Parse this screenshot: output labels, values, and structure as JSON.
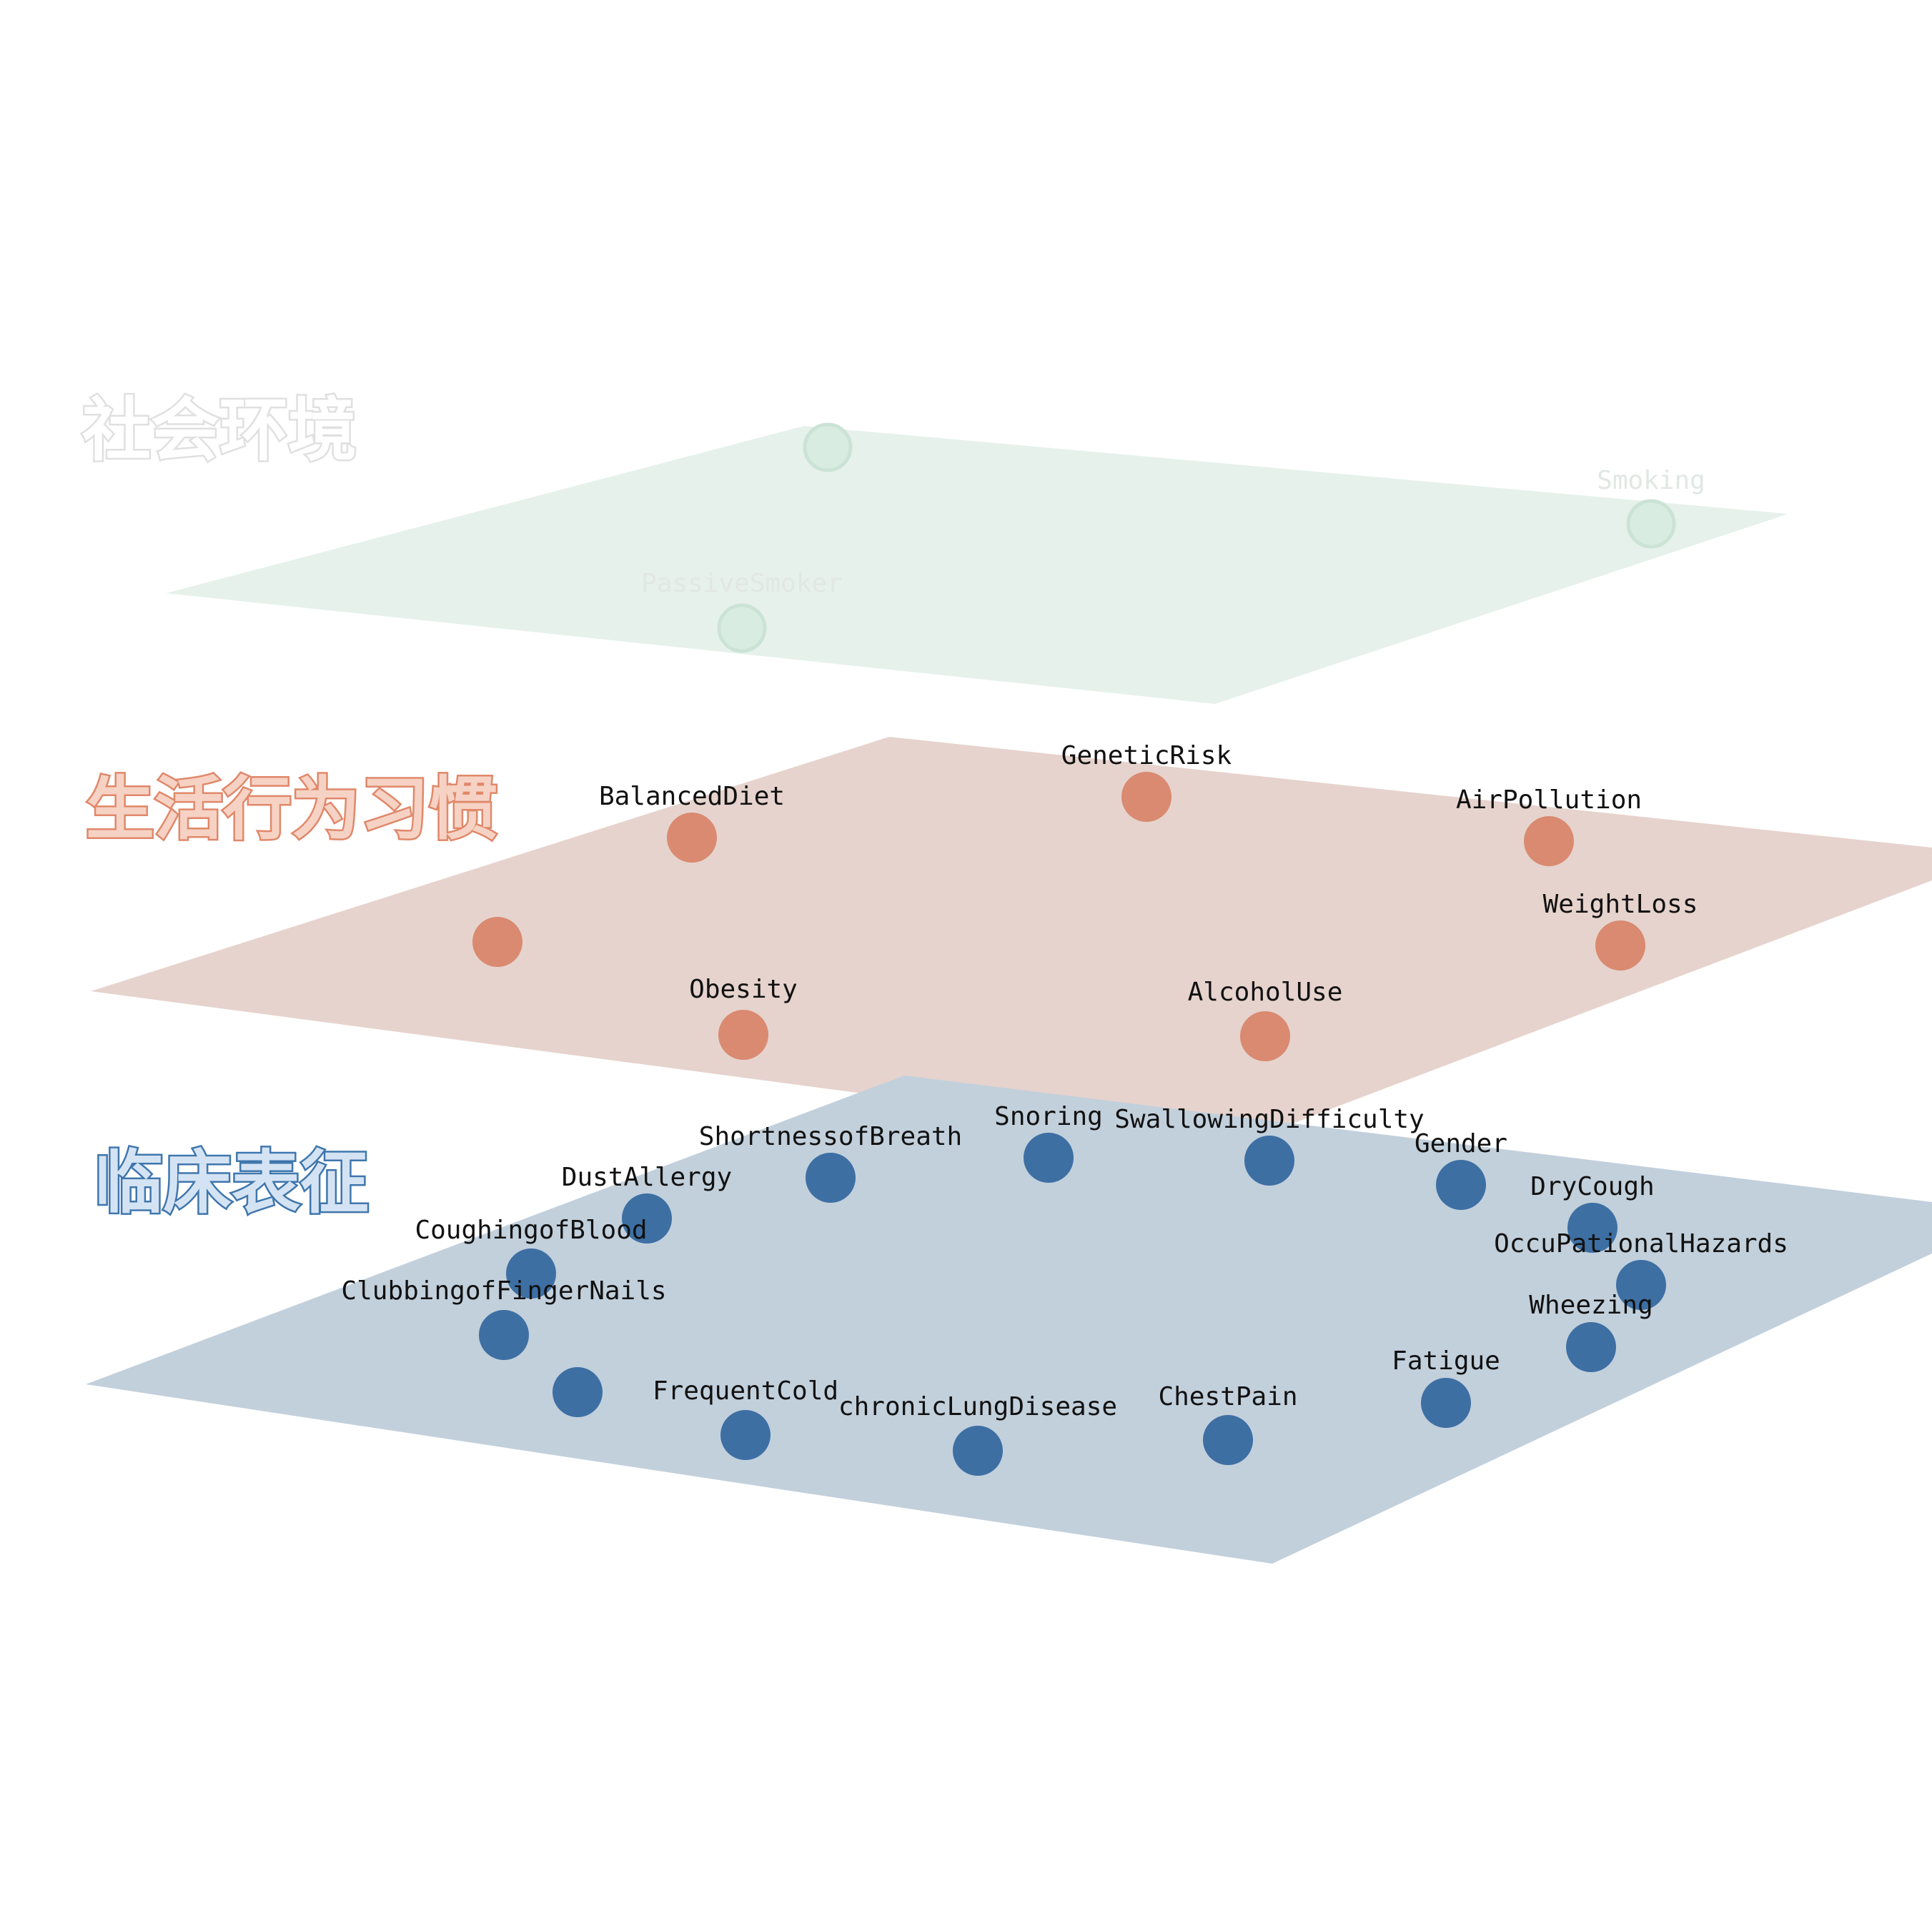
{
  "colors": {
    "social": "#d9ece1",
    "lifestyle": "#d98a70",
    "clinical": "#3d6fa3",
    "label_dark": "#111111",
    "label_faint": "#e1e7e3"
  },
  "layers": [
    {
      "id": "social",
      "title": "社会环境",
      "plane_fill": "#e7f1ec",
      "node_fill": "#d9ece1",
      "node_stroke": "#cbe3d5",
      "title_fill": "#ffffff",
      "title_stroke": "#e0e0e0",
      "nodes": [
        {
          "label": ""
        },
        {
          "label": "Smoking"
        },
        {
          "label": "PassiveSmoker"
        }
      ]
    },
    {
      "id": "lifestyle",
      "title": "生活行为习惯",
      "plane_fill": "#e6d3cd",
      "node_fill": "#d98a70",
      "node_stroke": "#d98a70",
      "title_fill": "#f6d2c4",
      "title_stroke": "#e0886a",
      "nodes": [
        {
          "label": "GeneticRisk"
        },
        {
          "label": "BalancedDiet"
        },
        {
          "label": "AirPollution"
        },
        {
          "label": ""
        },
        {
          "label": "WeightLoss"
        },
        {
          "label": "Obesity"
        },
        {
          "label": "AlcoholUse"
        }
      ]
    },
    {
      "id": "clinical",
      "title": "临床表征",
      "plane_fill": "#c2d0dc",
      "node_fill": "#3d6fa3",
      "node_stroke": "#3d6fa3",
      "title_fill": "#d4e3f3",
      "title_stroke": "#3f76ad",
      "nodes": [
        {
          "label": "Snoring"
        },
        {
          "label": "SwallowingDifficulty"
        },
        {
          "label": "ShortnessofBreath"
        },
        {
          "label": "Gender"
        },
        {
          "label": "DustAllergy"
        },
        {
          "label": "DryCough"
        },
        {
          "label": "CoughingofBlood"
        },
        {
          "label": "OccuPationalHazards"
        },
        {
          "label": "ClubbingofFingerNails"
        },
        {
          "label": "Wheezing"
        },
        {
          "label": ""
        },
        {
          "label": "Fatigue"
        },
        {
          "label": "FrequentCold"
        },
        {
          "label": "ChestPain"
        },
        {
          "label": "chronicLungDisease"
        }
      ]
    }
  ]
}
